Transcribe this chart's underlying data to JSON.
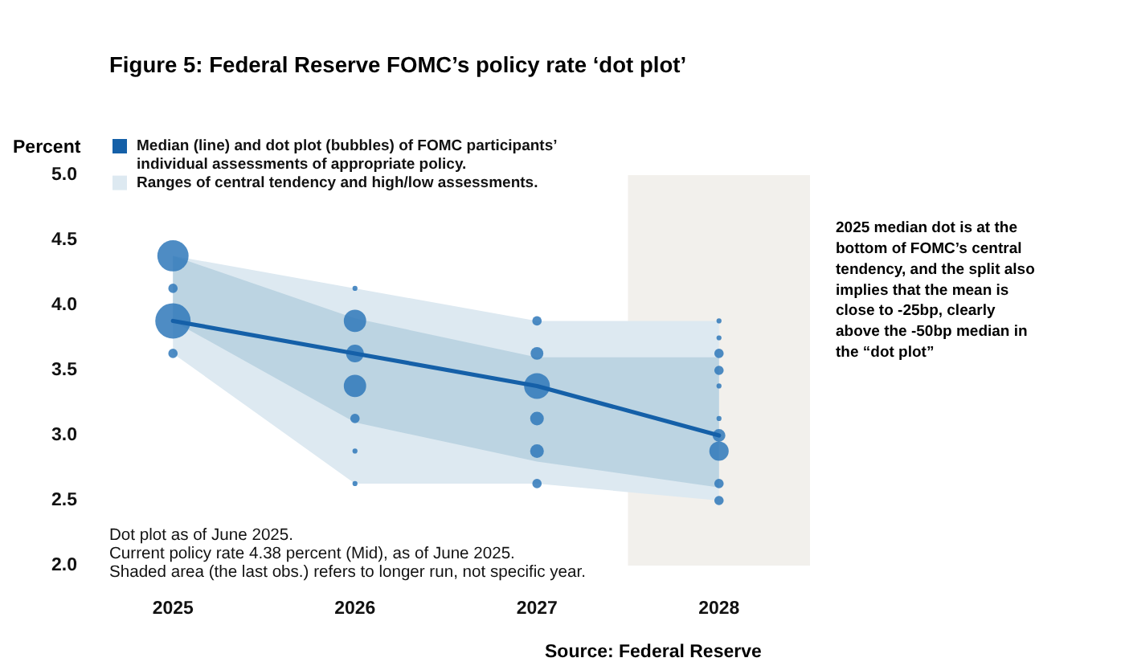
{
  "chart_data": {
    "type": "line",
    "title": "Figure 5: Federal Reserve FOMC’s policy rate ‘dot plot’",
    "ylabel": "Percent",
    "categories": [
      "2025",
      "2026",
      "2027",
      "2028"
    ],
    "ylim": [
      2,
      5
    ],
    "yticks": [
      {
        "value": 2,
        "label": "2.0"
      },
      2.5,
      {
        "value": 3,
        "label": "3.0"
      },
      3.5,
      {
        "value": 4,
        "label": "4.0"
      },
      4.5,
      {
        "value": 5,
        "label": "5.0"
      }
    ],
    "series": [
      {
        "name": "Median (line) and dot plot (bubbles) of FOMC participants’ individual assessments of appropriate policy.",
        "color": "#1560a8",
        "values": [
          3.88,
          3.63,
          3.38,
          3.0
        ]
      },
      {
        "type": "bubble",
        "color": "#2f78ba",
        "values": [
          4.38,
          null,
          null,
          null
        ],
        "sizes": [
          0.78,
          null,
          null,
          null
        ]
      },
      {
        "type": "bubble",
        "color": "#2f78ba",
        "values": [
          4.13,
          4.13,
          null,
          null
        ],
        "sizes": [
          0.07,
          0.02,
          null,
          null
        ]
      },
      {
        "type": "bubble",
        "color": "#2f78ba",
        "values": [
          3.88,
          3.88,
          3.88,
          3.88
        ],
        "sizes": [
          1,
          0.4,
          0.07,
          0.02
        ]
      },
      {
        "type": "bubble",
        "color": "#2f78ba",
        "values": [
          null,
          null,
          null,
          3.75
        ],
        "sizes": [
          null,
          null,
          null,
          0.02
        ]
      },
      {
        "type": "bubble",
        "color": "#2f78ba",
        "values": [
          3.63,
          3.63,
          3.63,
          3.63
        ],
        "sizes": [
          0.07,
          0.25,
          0.13,
          0.07
        ]
      },
      {
        "type": "bubble",
        "color": "#2f78ba",
        "values": [
          null,
          null,
          null,
          3.5
        ],
        "sizes": [
          null,
          null,
          null,
          0.07
        ]
      },
      {
        "type": "bubble",
        "color": "#2f78ba",
        "values": [
          null,
          3.38,
          3.38,
          3.38
        ],
        "sizes": [
          null,
          0.4,
          0.53,
          0.02
        ]
      },
      {
        "type": "bubble",
        "color": "#2f78ba",
        "values": [
          null,
          3.13,
          3.13,
          3.13
        ],
        "sizes": [
          null,
          0.07,
          0.15,
          0.02
        ]
      },
      {
        "type": "bubble",
        "color": "#2f78ba",
        "values": [
          null,
          null,
          null,
          3.0
        ],
        "sizes": [
          null,
          null,
          null,
          0.13
        ]
      },
      {
        "type": "bubble",
        "color": "#2f78ba",
        "values": [
          null,
          2.88,
          2.88,
          2.88
        ],
        "sizes": [
          null,
          0.02,
          0.15,
          0.3
        ]
      },
      {
        "type": "bubble",
        "color": "#2f78ba",
        "values": [
          null,
          2.63,
          2.63,
          2.63
        ],
        "sizes": [
          null,
          0.02,
          0.07,
          0.07
        ]
      },
      {
        "type": "bubble",
        "color": "#2f78ba",
        "values": [
          null,
          null,
          null,
          2.5
        ],
        "sizes": [
          null,
          null,
          null,
          0.07
        ]
      },
      {
        "type": "area",
        "name": "Ranges of central tendency and high/low assessments.",
        "color": "#dde9f1",
        "values": [
          null,
          null,
          null,
          null
        ],
        "lower": [
          3.63,
          2.63,
          2.63,
          2.5
        ],
        "upper": [
          4.38,
          4.13,
          3.88,
          3.88
        ]
      },
      {
        "type": "area",
        "color": "#bcd4e2",
        "values": [
          null,
          null,
          null,
          null
        ],
        "lower": [
          3.88,
          3.1,
          2.8,
          2.6
        ],
        "upper": [
          4.38,
          3.9,
          3.6,
          3.6
        ]
      }
    ],
    "bands": [
      {
        "axis": "x",
        "from": "2028",
        "to": "2028",
        "color": "#f2f0ec"
      }
    ],
    "legend": "top left",
    "annotations": [
      "2025 median dot is at the bottom of FOMC’s central tendency, and the split also implies that the mean is close to -25bp, clearly above the -50bp median in the “dot plot”",
      "Dot plot as of June 2025.",
      "Current policy rate 4.38 percent (Mid), as of June 2025.",
      "Shaded area (the last obs.) refers to longer run, not specific year.",
      "Source: Federal Reserve"
    ]
  }
}
